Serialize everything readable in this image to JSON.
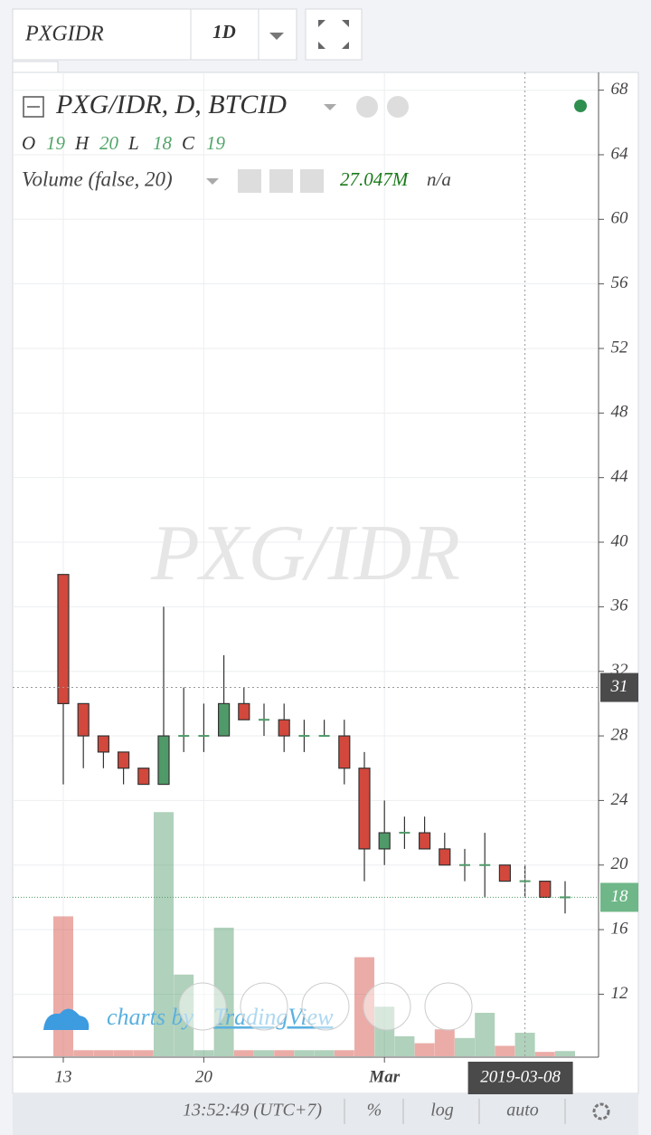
{
  "header": {
    "symbol": "PXGIDR",
    "interval": "1D"
  },
  "chart_data": {
    "type": "candlestick",
    "title": "PXG/IDR, D, BTCID",
    "watermark": "PXG/IDR",
    "ohlc_letters": [
      "O",
      "H",
      "L",
      "C"
    ],
    "categories": [
      "13",
      null,
      null,
      null,
      null,
      null,
      null,
      "20",
      null,
      null,
      null,
      null,
      null,
      null,
      null,
      null,
      "Mar",
      null,
      null,
      null,
      null,
      null,
      null,
      null,
      null,
      null
    ],
    "open": [
      38,
      30,
      28,
      27,
      26,
      25,
      28,
      28,
      28,
      30,
      29,
      29,
      28,
      28,
      28,
      26,
      21,
      22,
      22,
      21,
      20,
      20,
      20,
      19,
      19,
      18
    ],
    "high": [
      38,
      30,
      28,
      27,
      26,
      36,
      31,
      30,
      33,
      31,
      30,
      30,
      29,
      29,
      29,
      27,
      24,
      23,
      23,
      22,
      21,
      22,
      20,
      20,
      19,
      19
    ],
    "low": [
      25,
      26,
      26,
      25,
      25,
      25,
      27,
      27,
      28,
      29,
      28,
      27,
      27,
      28,
      25,
      19,
      20,
      21,
      21,
      20,
      19,
      18,
      19,
      18,
      18,
      17
    ],
    "close": [
      30,
      28,
      27,
      26,
      25,
      28,
      28,
      28,
      30,
      29,
      29,
      28,
      28,
      28,
      26,
      21,
      22,
      22,
      21,
      20,
      20,
      20,
      19,
      19,
      18,
      18
    ],
    "up_color": "#4f9a68",
    "down_color": "#d2483c",
    "volume": {
      "name": "Volume (false, 20)",
      "extra": "n/a",
      "values": [
        161,
        7,
        7,
        7,
        7,
        281,
        94,
        7,
        148,
        7,
        7,
        7,
        7,
        7,
        7,
        114,
        57,
        23,
        15,
        31,
        21,
        50,
        12,
        27.047,
        5,
        6
      ],
      "value_labels": [
        null,
        null,
        null,
        null,
        null,
        null,
        null,
        null,
        null,
        null,
        null,
        null,
        null,
        null,
        null,
        null,
        null,
        null,
        null,
        null,
        null,
        null,
        null,
        "27.047M",
        null,
        null
      ]
    },
    "ylim": [
      8.1,
      69.1
    ],
    "yticks": [
      12,
      16,
      20,
      24,
      28,
      32,
      36,
      40,
      44,
      48,
      52,
      56,
      60,
      64,
      68
    ],
    "grid": true,
    "crosshair": {
      "price": 31,
      "date": "2019-03-08"
    },
    "last_price": 18,
    "branding": [
      "charts by",
      "TradingView"
    ]
  },
  "footer": {
    "time": "13:52:49 (UTC+7)",
    "buttons": [
      "%",
      "log",
      "auto"
    ]
  }
}
